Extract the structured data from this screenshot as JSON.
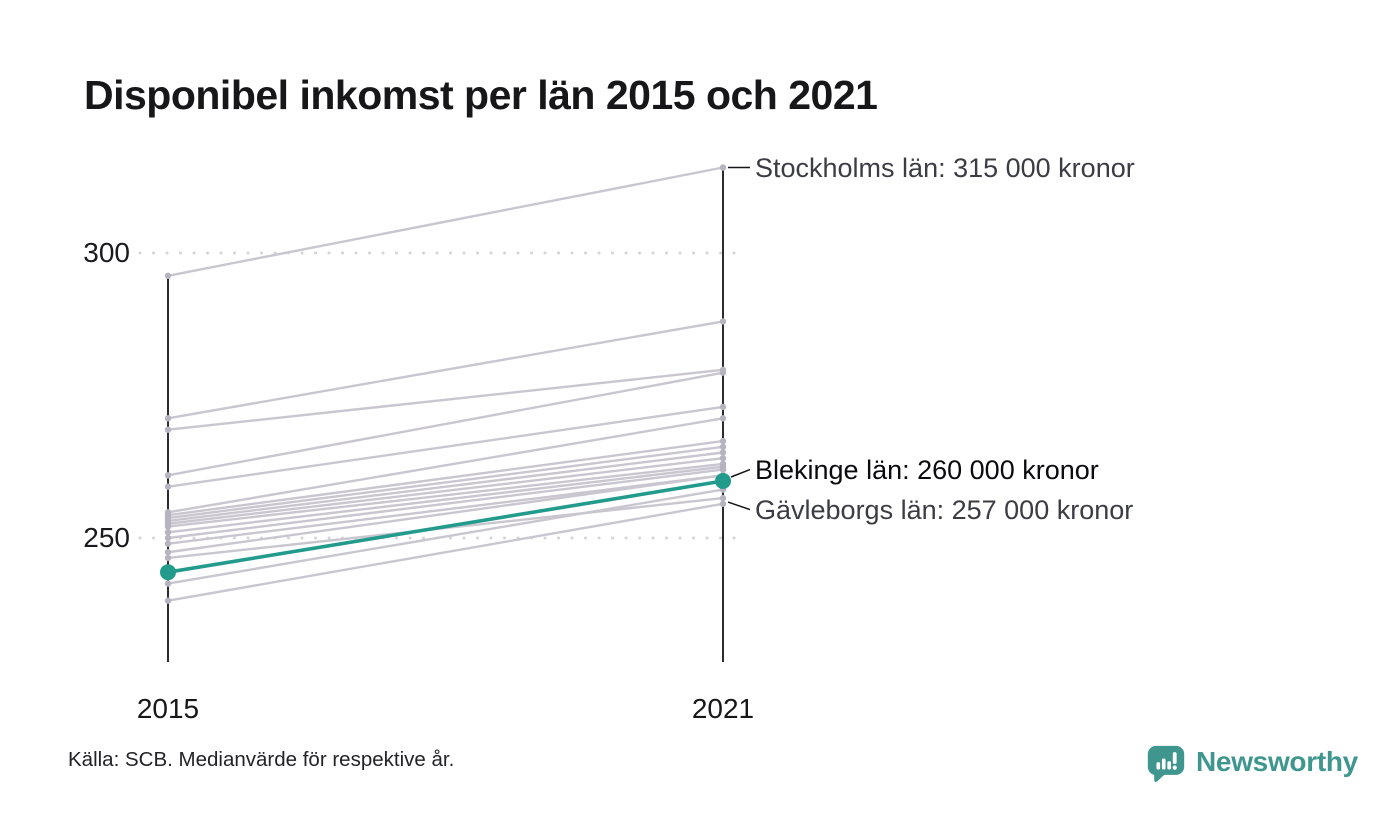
{
  "title": "Disponibel inkomst per län 2015 och 2021",
  "source_note": "Källa: SCB. Medianvärde för respektive år.",
  "branding": {
    "name": "Newsworthy",
    "icon": "newsworthy-speech-bubble-barchart-icon",
    "color": "#3f968e"
  },
  "colors": {
    "line": "#c9c6d0",
    "endpoint_dot": "#b7b4bf",
    "highlight": "#239b8c",
    "axis": "#141418",
    "grid": "#d7d5db",
    "leader": "#15151a",
    "tick_text": "#1a1a1e",
    "annotation_gray": "#3c3c45",
    "annotation_dark": "#0a0a0f"
  },
  "chart_data": {
    "type": "line",
    "subtype": "slope-chart",
    "x_categories": [
      "2015",
      "2021"
    ],
    "y_ticks": [
      300,
      250
    ],
    "y_axis_range": [
      236,
      318
    ],
    "grid": "dotted-horizontal",
    "values_are": "thousands of kronor (median disposable income)",
    "series": [
      {
        "name": "Stockholms län",
        "values": [
          296,
          315
        ],
        "label": "Stockholms län: 315 000 kronor",
        "highlight": false
      },
      {
        "values": [
          271,
          288
        ]
      },
      {
        "values": [
          269,
          279.5
        ]
      },
      {
        "values": [
          261,
          279
        ]
      },
      {
        "values": [
          259,
          273
        ]
      },
      {
        "values": [
          254.5,
          271
        ]
      },
      {
        "values": [
          254,
          267
        ]
      },
      {
        "values": [
          253.5,
          266
        ]
      },
      {
        "values": [
          253,
          265
        ]
      },
      {
        "values": [
          252.5,
          264
        ]
      },
      {
        "values": [
          252,
          263
        ]
      },
      {
        "values": [
          251,
          262.5
        ]
      },
      {
        "values": [
          250,
          262
        ]
      },
      {
        "values": [
          249,
          261
        ]
      },
      {
        "values": [
          247.5,
          261
        ]
      },
      {
        "name": "Gävleborgs län",
        "values": [
          246.5,
          257
        ],
        "label": "Gävleborgs län: 257 000 kronor",
        "highlight": false
      },
      {
        "name": "Blekinge län",
        "values": [
          244,
          260
        ],
        "label": "Blekinge län: 260 000 kronor",
        "highlight": true
      },
      {
        "values": [
          242,
          258.5
        ]
      },
      {
        "values": [
          239,
          256
        ]
      }
    ]
  }
}
